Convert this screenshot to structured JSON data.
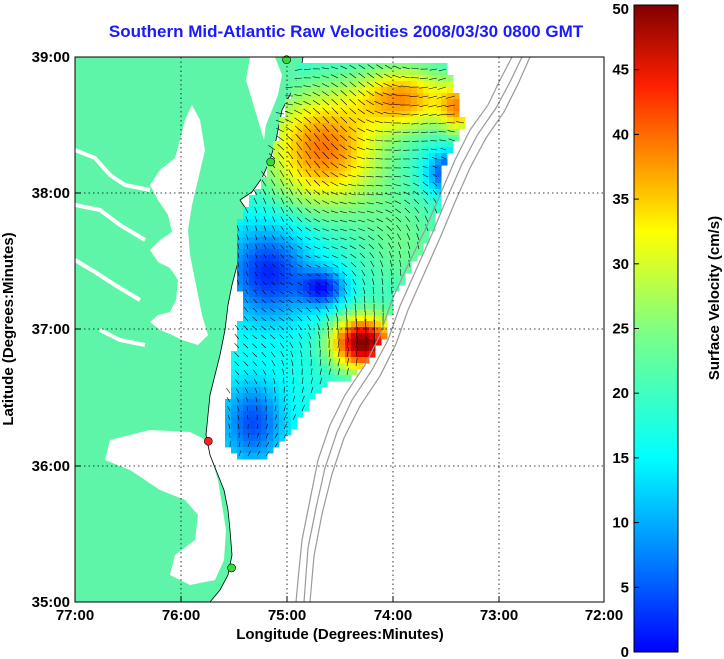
{
  "title": "Southern Mid-Atlantic Raw Velocities 2008/03/30 0800 GMT",
  "x_axis": {
    "label": "Longitude (Degrees:Minutes)",
    "ticks": [
      "77:00",
      "76:00",
      "75:00",
      "74:00",
      "73:00",
      "72:00"
    ]
  },
  "y_axis": {
    "label": "Latitude (Degrees:Minutes)",
    "ticks": [
      "39:00",
      "38:00",
      "37:00",
      "36:00",
      "35:00"
    ]
  },
  "colorbar": {
    "label": "Surface Velocity (cm/s)",
    "ticks": [
      "50",
      "45",
      "40",
      "35",
      "30",
      "25",
      "20",
      "15",
      "10",
      "5",
      "0"
    ],
    "min": 0,
    "max": 50,
    "colormap": "jet"
  },
  "map": {
    "lon_range": [
      -77,
      -72
    ],
    "lat_range": [
      35,
      39
    ],
    "grid": "dotted",
    "land_color": "#5ef5a8",
    "water_color": "#ffffff",
    "bathymetry_color": "#9a9a9a",
    "stations": [
      {
        "lat": 38.98,
        "lon": -75.0,
        "color": "#33dd33"
      },
      {
        "lat": 38.23,
        "lon": -75.15,
        "color": "#33dd33"
      },
      {
        "lat": 36.18,
        "lon": -75.74,
        "color": "#ff2222"
      },
      {
        "lat": 35.25,
        "lon": -75.52,
        "color": "#33dd33"
      }
    ]
  }
}
